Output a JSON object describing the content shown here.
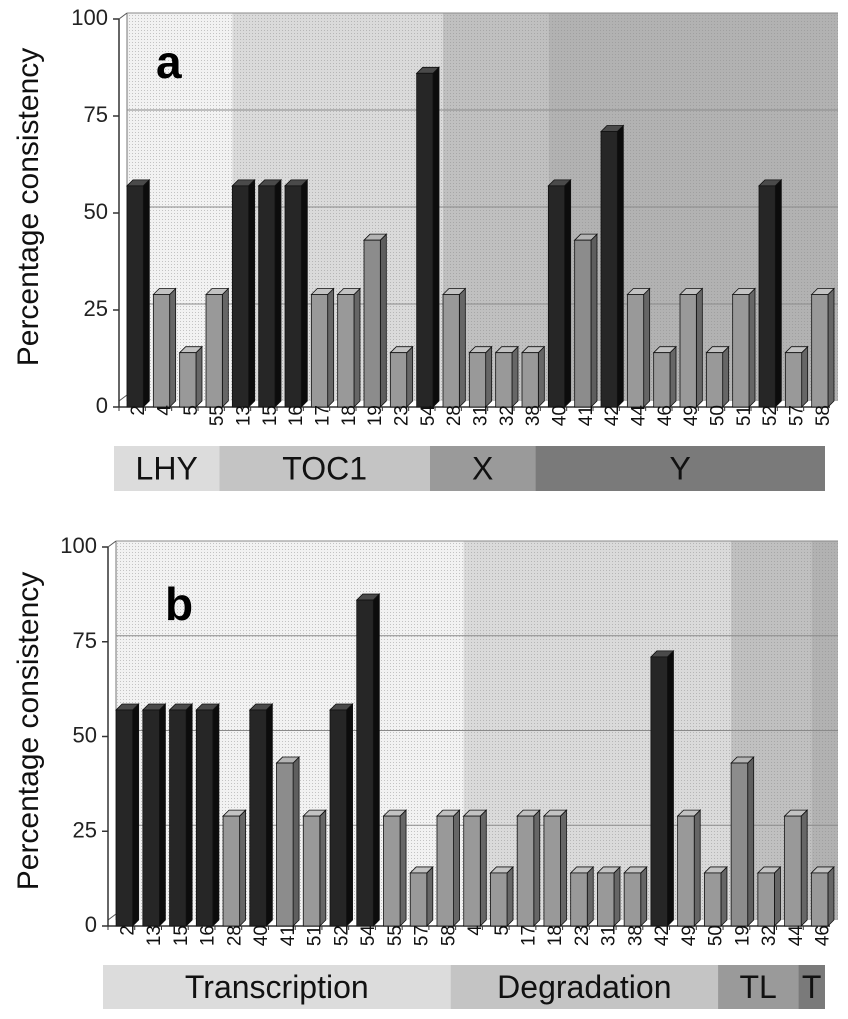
{
  "chart_data": [
    {
      "type": "bar",
      "panel_label": "a",
      "ylabel": "Percentage consistency",
      "ylim": [
        0,
        100
      ],
      "yticks": [
        "0",
        "25",
        "50",
        "75",
        "100"
      ],
      "grid": true,
      "categories": [
        "2",
        "4",
        "5",
        "55",
        "13",
        "15",
        "16",
        "17",
        "18",
        "19",
        "23",
        "54",
        "28",
        "31",
        "32",
        "38",
        "40",
        "41",
        "42",
        "44",
        "46",
        "49",
        "50",
        "51",
        "52",
        "57",
        "58"
      ],
      "values": [
        57,
        29,
        14,
        29,
        57,
        57,
        57,
        29,
        29,
        43,
        14,
        86,
        29,
        14,
        14,
        14,
        57,
        43,
        71,
        29,
        14,
        29,
        14,
        29,
        57,
        14,
        29
      ],
      "groups": [
        {
          "label": "LHY",
          "count": 4,
          "color": "#dcdcdc"
        },
        {
          "label": "TOC1",
          "count": 8,
          "color": "#c4c4c4"
        },
        {
          "label": "X",
          "count": 4,
          "color": "#9a9a9a"
        },
        {
          "label": "Y",
          "count": 11,
          "color": "#7a7a7a"
        }
      ]
    },
    {
      "type": "bar",
      "panel_label": "b",
      "ylabel": "Percentage consistency",
      "ylim": [
        0,
        100
      ],
      "yticks": [
        "0",
        "25",
        "50",
        "75",
        "100"
      ],
      "grid": true,
      "categories": [
        "2",
        "13",
        "15",
        "16",
        "28",
        "40",
        "41",
        "51",
        "52",
        "54",
        "55",
        "57",
        "58",
        "4",
        "5",
        "17",
        "18",
        "23",
        "31",
        "38",
        "42",
        "49",
        "50",
        "19",
        "32",
        "44",
        "46"
      ],
      "values": [
        57,
        57,
        57,
        57,
        29,
        57,
        43,
        29,
        57,
        86,
        29,
        14,
        29,
        29,
        14,
        29,
        29,
        14,
        14,
        14,
        71,
        29,
        14,
        43,
        14,
        29,
        14
      ],
      "groups": [
        {
          "label": "Transcription",
          "count": 13,
          "color": "#dcdcdc"
        },
        {
          "label": "Degradation",
          "count": 10,
          "color": "#c4c4c4"
        },
        {
          "label": "TL",
          "count": 3,
          "color": "#9a9a9a"
        },
        {
          "label": "T",
          "count": 1,
          "color": "#7a7a7a"
        }
      ]
    }
  ]
}
